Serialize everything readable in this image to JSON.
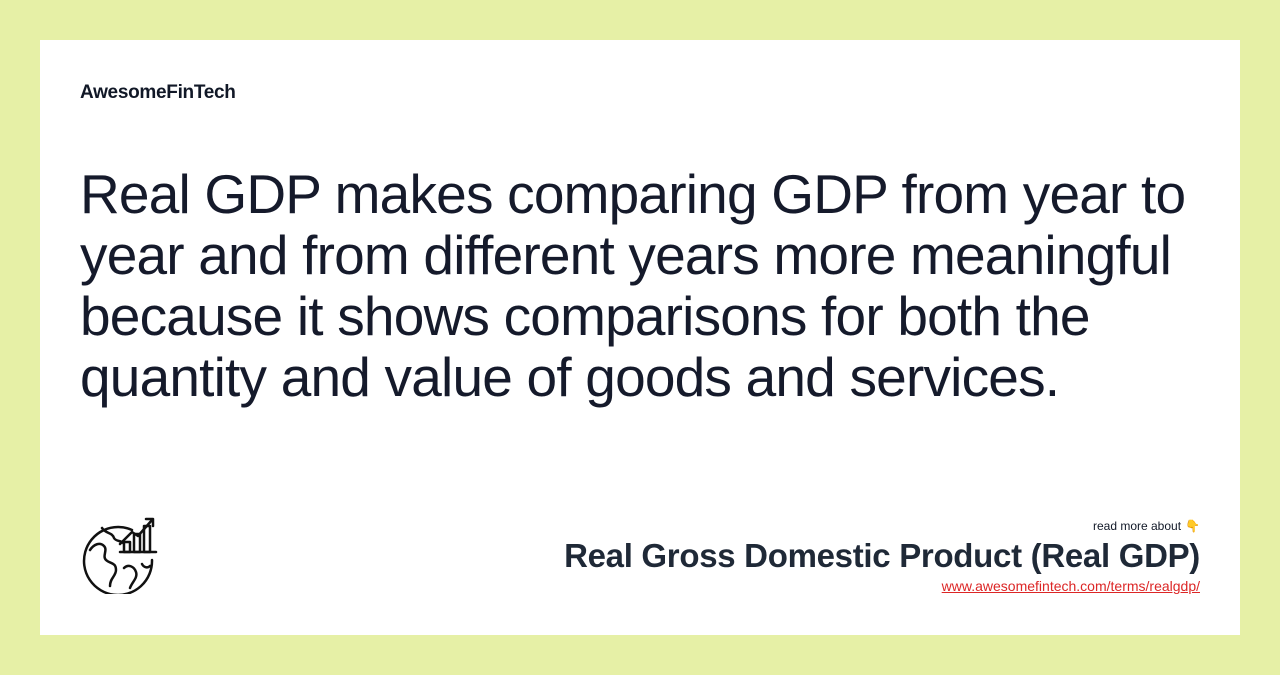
{
  "brand": {
    "name": "AwesomeFinTech"
  },
  "quote": {
    "text": "Real GDP makes comparing GDP from year to year and from different years more meaningful because it shows comparisons for both the quantity and value of goods and services."
  },
  "footer": {
    "read_more_label": "read more about",
    "pointer_emoji": "👇",
    "term_title": "Real Gross Domestic Product (Real GDP)",
    "term_url": "www.awesomefintech.com/terms/realgdp/"
  },
  "icons": {
    "illustration": "globe-with-bar-chart-icon"
  },
  "colors": {
    "background": "#e6f0a6",
    "card": "#ffffff",
    "text": "#151a2b",
    "link": "#dc2626"
  }
}
